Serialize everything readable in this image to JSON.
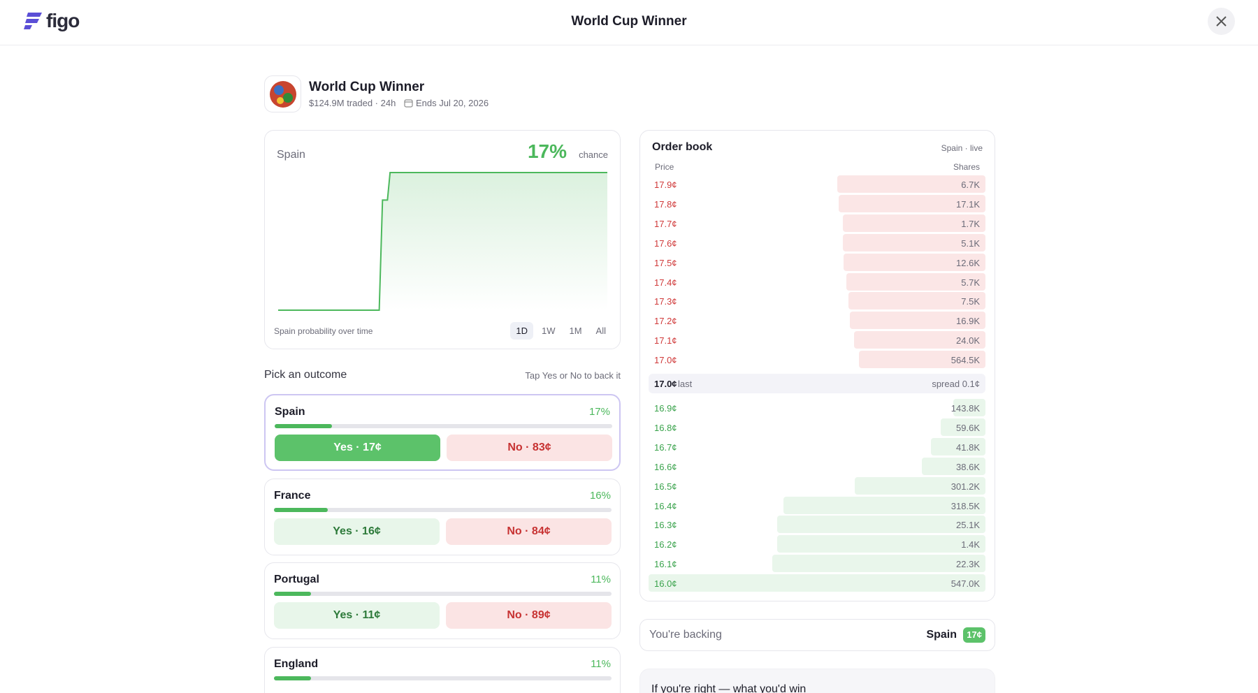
{
  "header": {
    "logo": "figo",
    "title": "World Cup Winner"
  },
  "market": {
    "title": "World Cup Winner",
    "volume": "$124.9M traded · 24h",
    "ends": "Ends Jul 20, 2026"
  },
  "chart_data": {
    "type": "line",
    "outcome": "Spain",
    "chance": "17%",
    "chance_label": "chance",
    "caption": "Spain probability over time",
    "ranges": [
      "1D",
      "1W",
      "1M",
      "All"
    ],
    "x": [
      0,
      30.7,
      31.7,
      32.7,
      33.2,
      34,
      100
    ],
    "values": [
      9,
      9,
      15.4,
      15.4,
      15.4,
      17,
      17
    ],
    "xlim": [
      0,
      100
    ],
    "ylim": [
      9,
      17
    ],
    "color": "#4cb85c"
  },
  "outcomes": {
    "title": "Pick an outcome",
    "hint": "Tap Yes or No to back it",
    "items": [
      {
        "name": "Spain",
        "chance": 17,
        "chance_label": "17%",
        "yes": "Yes · 17¢",
        "no": "No · 83¢"
      },
      {
        "name": "France",
        "chance": 16,
        "chance_label": "16%",
        "yes": "Yes · 16¢",
        "no": "No · 84¢"
      },
      {
        "name": "Portugal",
        "chance": 11,
        "chance_label": "11%",
        "yes": "Yes · 11¢",
        "no": "No · 89¢"
      },
      {
        "name": "England",
        "chance": 11,
        "chance_label": "11%"
      }
    ]
  },
  "order_book": {
    "title": "Order book",
    "meta": "Spain · live",
    "columns": [
      "Price",
      "Shares"
    ],
    "asks": [
      {
        "price": "17.9¢",
        "shares": "6.7K"
      },
      {
        "price": "17.8¢",
        "shares": "17.1K"
      },
      {
        "price": "17.7¢",
        "shares": "1.7K"
      },
      {
        "price": "17.6¢",
        "shares": "5.1K"
      },
      {
        "price": "17.5¢",
        "shares": "12.6K"
      },
      {
        "price": "17.4¢",
        "shares": "5.7K"
      },
      {
        "price": "17.3¢",
        "shares": "7.5K"
      },
      {
        "price": "17.2¢",
        "shares": "16.9K"
      },
      {
        "price": "17.1¢",
        "shares": "24.0K"
      },
      {
        "price": "17.0¢",
        "shares": "564.5K"
      }
    ],
    "last": "17.0¢",
    "last_label": "last",
    "spread": "spread 0.1¢",
    "bids": [
      {
        "price": "16.9¢",
        "shares": "143.8K"
      },
      {
        "price": "16.8¢",
        "shares": "59.6K"
      },
      {
        "price": "16.7¢",
        "shares": "41.8K"
      },
      {
        "price": "16.6¢",
        "shares": "38.6K"
      },
      {
        "price": "16.5¢",
        "shares": "301.2K"
      },
      {
        "price": "16.4¢",
        "shares": "318.5K"
      },
      {
        "price": "16.3¢",
        "shares": "25.1K"
      },
      {
        "price": "16.2¢",
        "shares": "1.4K"
      },
      {
        "price": "16.1¢",
        "shares": "22.3K"
      },
      {
        "price": "16.0¢",
        "shares": "547.0K"
      }
    ]
  },
  "backing": {
    "label": "You're backing",
    "outcome": "Spain",
    "price": "17¢"
  },
  "win": {
    "title": "If you're right — what you'd win"
  }
}
